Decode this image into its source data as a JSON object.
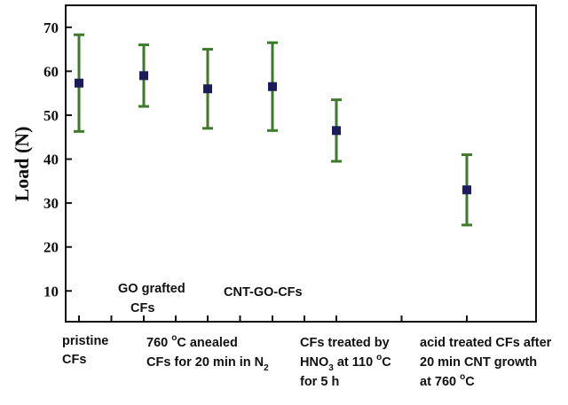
{
  "chart_data": {
    "type": "errorbar",
    "ylabel": "Load (N)",
    "yticks": [
      "10",
      "20",
      "30",
      "40",
      "50",
      "60",
      "70"
    ],
    "ylim": [
      3,
      75
    ],
    "grid": false,
    "series_color": "#3d7a2a",
    "marker_color": "#1c1c5c",
    "categories": [
      "pristine CFs",
      "GO grafted CFs",
      "760 °C anealed CFs for 20 min in N2",
      "CNT-GO-CFs",
      "CFs treated by HNO3 at 110 °C for 5 h",
      "acid treated CFs after 20 min CNT growth at 760 °C"
    ],
    "points": [
      {
        "mean": 57.3,
        "low": 46.3,
        "high": 68.3
      },
      {
        "mean": 59.0,
        "low": 52.0,
        "high": 66.0
      },
      {
        "mean": 56.0,
        "low": 47.0,
        "high": 65.0
      },
      {
        "mean": 56.5,
        "low": 46.5,
        "high": 66.5
      },
      {
        "mean": 46.5,
        "low": 39.5,
        "high": 53.5
      },
      {
        "mean": 33.0,
        "low": 25.0,
        "high": 41.0
      }
    ],
    "labels": {
      "cat1_l1": "pristine",
      "cat1_l2": "CFs",
      "cat2_l1": "GO grafted",
      "cat2_l2": "CFs",
      "cat3_l1_a": "760 ",
      "cat3_l1_deg": "o",
      "cat3_l1_b": "C anealed",
      "cat3_l2_a": "CFs for 20 min in N",
      "cat3_l2_sub": "2",
      "cat4_l1": "CNT-GO-CFs",
      "cat5_l1": "CFs treated by",
      "cat5_l2_a": "HNO",
      "cat5_l2_sub": "3",
      "cat5_l2_b": " at 110 ",
      "cat5_l2_deg": "o",
      "cat5_l2_c": "C",
      "cat5_l3": "for 5 h",
      "cat6_l1": "acid treated CFs after",
      "cat6_l2": "20 min CNT growth",
      "cat6_l3_a": "at 760 ",
      "cat6_l3_deg": "o",
      "cat6_l3_b": "C"
    }
  }
}
